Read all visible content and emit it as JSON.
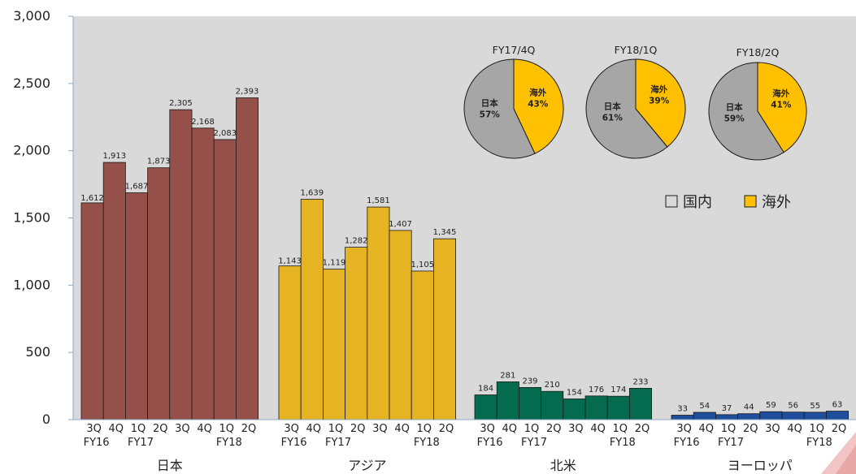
{
  "chart_data": {
    "type": "bar",
    "title": "",
    "xlabel": "",
    "ylabel": "",
    "ylim": [
      0,
      3000
    ],
    "yticks": [
      0,
      500,
      1000,
      1500,
      2000,
      2500,
      3000
    ],
    "ytick_labels": [
      "0",
      "500",
      "1,000",
      "1,500",
      "2,000",
      "2,500",
      "3,000"
    ],
    "period_labels": [
      "3Q",
      "4Q",
      "1Q",
      "2Q",
      "3Q",
      "4Q",
      "1Q",
      "2Q"
    ],
    "fy_labels": [
      {
        "label": "FY16",
        "index": 0
      },
      {
        "label": "FY17",
        "index": 2
      },
      {
        "label": "FY18",
        "index": 6
      }
    ],
    "groups": [
      {
        "name": "日本",
        "color": "#96504A",
        "values": [
          1612,
          1913,
          1687,
          1873,
          2305,
          2168,
          2083,
          2393
        ],
        "value_labels": [
          "1,612",
          "1,913",
          "1,687",
          "1,873",
          "2,305",
          "2,168",
          "2,083",
          "2,393"
        ]
      },
      {
        "name": "アジア",
        "color": "#E6B422",
        "values": [
          1143,
          1639,
          1119,
          1282,
          1581,
          1407,
          1105,
          1345
        ],
        "value_labels": [
          "1,143",
          "1,639",
          "1,119",
          "1,282",
          "1,581",
          "1,407",
          "1,105",
          "1,345"
        ]
      },
      {
        "name": "北米",
        "color": "#046B4E",
        "values": [
          184,
          281,
          239,
          210,
          154,
          176,
          174,
          233
        ],
        "value_labels": [
          "184",
          "281",
          "239",
          "210",
          "154",
          "176",
          "174",
          "233"
        ]
      },
      {
        "name": "ヨーロッパ",
        "color": "#1F4E9C",
        "values": [
          33,
          54,
          37,
          44,
          59,
          56,
          55,
          63
        ],
        "value_labels": [
          "33",
          "54",
          "37",
          "44",
          "59",
          "56",
          "55",
          "63"
        ]
      }
    ],
    "grid": false,
    "plot_background": "#D9D9D9",
    "pies": [
      {
        "type": "pie",
        "title": "FY17/4Q",
        "slices": [
          {
            "label": "海外",
            "value": 43,
            "value_label": "43%",
            "color": "#FFC000"
          },
          {
            "label": "日本",
            "value": 57,
            "value_label": "57%",
            "color": "#A6A6A6"
          }
        ]
      },
      {
        "type": "pie",
        "title": "FY18/1Q",
        "slices": [
          {
            "label": "海外",
            "value": 39,
            "value_label": "39%",
            "color": "#FFC000"
          },
          {
            "label": "日本",
            "value": 61,
            "value_label": "61%",
            "color": "#A6A6A6"
          }
        ]
      },
      {
        "type": "pie",
        "title": "FY18/2Q",
        "slices": [
          {
            "label": "海外",
            "value": 41,
            "value_label": "41%",
            "color": "#FFC000"
          },
          {
            "label": "日本",
            "value": 59,
            "value_label": "59%",
            "color": "#A6A6A6"
          }
        ]
      }
    ],
    "legend": {
      "placement": "top-right",
      "entries": [
        {
          "name": "国内",
          "color": "#D9D9D9"
        },
        {
          "name": "海外",
          "color": "#FFC000"
        }
      ]
    }
  }
}
